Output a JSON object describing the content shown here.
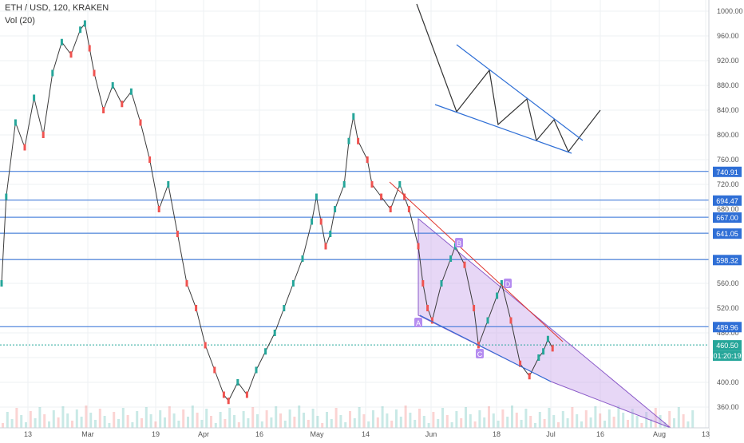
{
  "header": {
    "title": "ETH / USD, 120, KRAKEN",
    "volume_label": "Vol (20)"
  },
  "colors": {
    "hline": "#2f6fd6",
    "price_line": "#26a69a",
    "trendline_red": "#e0362f",
    "wedge_fill": "#c9a6ec",
    "wedge_stroke": "#8a5ac8",
    "channel_blue": "#2f6fd6",
    "label_bg": "#2f6fd6",
    "point_label_bg": "#b58cf0",
    "up": "#26a69a",
    "down": "#ef5350"
  },
  "chart_data": {
    "type": "candlestick",
    "xlabel": "",
    "ylabel": "",
    "ylim": [
      330,
      1020
    ],
    "grid": true,
    "x_ticks": [
      "13",
      "Mar",
      "19",
      "Apr",
      "16",
      "May",
      "14",
      "Jun",
      "18",
      "Jul",
      "16",
      "Aug",
      "13"
    ],
    "y_ticks": [
      1000,
      960,
      920,
      880,
      840,
      800,
      760,
      720,
      680,
      640,
      600,
      560,
      520,
      480,
      440,
      400,
      360
    ],
    "horizontal_levels": [
      {
        "label": "740.91",
        "value": 740.91
      },
      {
        "label": "694.47",
        "value": 694.47
      },
      {
        "label": "667.00",
        "value": 667.0
      },
      {
        "label": "641.05",
        "value": 641.05
      },
      {
        "label": "598.32",
        "value": 598.32
      },
      {
        "label": "489.96",
        "value": 489.96
      }
    ],
    "current_price": {
      "label": "460.50",
      "value": 460.5
    },
    "countdown": "01:20:19",
    "pattern_points": [
      {
        "name": "A",
        "value": 488
      },
      {
        "name": "B",
        "value": 633
      },
      {
        "name": "C",
        "value": 434
      },
      {
        "name": "D",
        "value": 555
      }
    ],
    "price_series": [
      [
        0,
        560
      ],
      [
        1,
        700
      ],
      [
        3,
        820
      ],
      [
        5,
        780
      ],
      [
        7,
        860
      ],
      [
        9,
        800
      ],
      [
        11,
        900
      ],
      [
        13,
        950
      ],
      [
        15,
        930
      ],
      [
        17,
        970
      ],
      [
        18,
        980
      ],
      [
        19,
        940
      ],
      [
        20,
        900
      ],
      [
        22,
        840
      ],
      [
        24,
        880
      ],
      [
        26,
        850
      ],
      [
        28,
        870
      ],
      [
        30,
        820
      ],
      [
        32,
        760
      ],
      [
        34,
        680
      ],
      [
        36,
        720
      ],
      [
        38,
        640
      ],
      [
        40,
        560
      ],
      [
        42,
        520
      ],
      [
        44,
        460
      ],
      [
        46,
        420
      ],
      [
        48,
        380
      ],
      [
        49,
        370
      ],
      [
        51,
        400
      ],
      [
        53,
        380
      ],
      [
        55,
        420
      ],
      [
        57,
        450
      ],
      [
        59,
        480
      ],
      [
        61,
        520
      ],
      [
        63,
        560
      ],
      [
        65,
        600
      ],
      [
        67,
        660
      ],
      [
        68,
        700
      ],
      [
        69,
        660
      ],
      [
        70,
        620
      ],
      [
        71,
        640
      ],
      [
        72,
        680
      ],
      [
        74,
        720
      ],
      [
        75,
        790
      ],
      [
        76,
        830
      ],
      [
        77,
        790
      ],
      [
        79,
        760
      ],
      [
        80,
        720
      ],
      [
        82,
        700
      ],
      [
        84,
        680
      ],
      [
        86,
        720
      ],
      [
        87,
        700
      ],
      [
        88,
        680
      ],
      [
        90,
        620
      ],
      [
        91,
        560
      ],
      [
        92,
        520
      ],
      [
        93,
        500
      ],
      [
        95,
        560
      ],
      [
        97,
        600
      ],
      [
        98,
        620
      ],
      [
        100,
        590
      ],
      [
        102,
        520
      ],
      [
        103,
        460
      ],
      [
        105,
        500
      ],
      [
        107,
        540
      ],
      [
        108,
        560
      ],
      [
        110,
        500
      ],
      [
        112,
        430
      ],
      [
        114,
        410
      ],
      [
        116,
        440
      ],
      [
        117,
        450
      ],
      [
        118,
        470
      ],
      [
        119,
        455
      ]
    ]
  }
}
